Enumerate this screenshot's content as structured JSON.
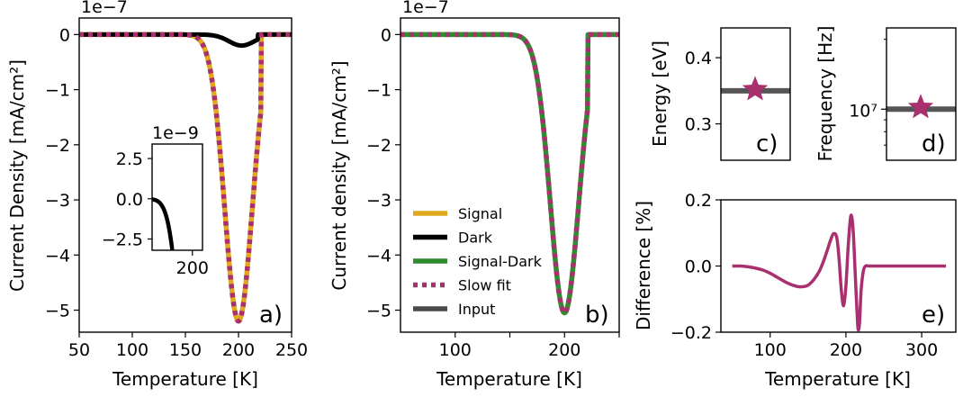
{
  "chart_data": [
    {
      "id": "a",
      "type": "line",
      "panel_label": "a)",
      "xlabel": "Temperature [K]",
      "ylabel": "Current Density [mA/cm²]",
      "offset_label": "1e−7",
      "xlim": [
        50,
        250
      ],
      "ylim": [
        -5.4,
        0.3
      ],
      "x_ticks": [
        50,
        100,
        150,
        200,
        250
      ],
      "x_tick_labels": [
        "50",
        "100",
        "150",
        "200",
        "250"
      ],
      "y_ticks": [
        0,
        -1,
        -2,
        -3,
        -4,
        -5
      ],
      "y_tick_labels": [
        "0",
        "−1",
        "−2",
        "−3",
        "−4",
        "−5"
      ],
      "series": [
        {
          "name": "Signal",
          "color": "#E0A81E",
          "style": "solid",
          "shape": "gaussian",
          "center": 200,
          "width": 13,
          "amplitude": -5.2,
          "cutoff": 221
        },
        {
          "name": "Dark",
          "color": "#000000",
          "style": "solid",
          "shape": "gaussian",
          "center": 203,
          "width": 12,
          "amplitude": -0.2,
          "cutoff": 218
        },
        {
          "name": "Slow fit",
          "color": "#A8306E",
          "style": "dotted",
          "shape": "gaussian",
          "center": 200,
          "width": 13,
          "amplitude": -5.2,
          "cutoff": 221
        }
      ],
      "inset": {
        "offset_label": "1e−9",
        "xlim": [
          160,
          210
        ],
        "ylim": [
          -3.2,
          3.4
        ],
        "y_ticks": [
          2.5,
          0.0,
          -2.5
        ],
        "y_tick_labels": [
          "2.5",
          "0.0",
          "−2.5"
        ],
        "x_ticks": [
          200
        ],
        "x_tick_labels": [
          "200"
        ]
      }
    },
    {
      "id": "b",
      "type": "line",
      "panel_label": "b)",
      "xlabel": "Temperature [K]",
      "ylabel": "Current density [mA/cm²]",
      "offset_label": "1e−7",
      "xlim": [
        50,
        250
      ],
      "ylim": [
        -5.4,
        0.3
      ],
      "x_ticks": [
        100,
        150,
        200,
        250
      ],
      "x_tick_labels": [
        "100",
        "",
        "200",
        ""
      ],
      "y_ticks": [
        0,
        -1,
        -2,
        -3,
        -4,
        -5
      ],
      "y_tick_labels": [
        "0",
        "−1",
        "−2",
        "−3",
        "−4",
        "−5"
      ],
      "series": [
        {
          "name": "Signal-Dark",
          "color": "#2E8B2E",
          "style": "solid",
          "shape": "gaussian",
          "center": 200,
          "width": 13,
          "amplitude": -5.05,
          "cutoff": 221
        },
        {
          "name": "Slow fit",
          "color": "#A8306E",
          "style": "dotted",
          "shape": "gaussian",
          "center": 200,
          "width": 13,
          "amplitude": -5.05,
          "cutoff": 221
        }
      ],
      "legend": {
        "position": "lower-left",
        "entries": [
          {
            "label": "Signal",
            "color": "#E0A81E",
            "style": "solid"
          },
          {
            "label": "Dark",
            "color": "#000000",
            "style": "solid"
          },
          {
            "label": "Signal-Dark",
            "color": "#2E8B2E",
            "style": "solid"
          },
          {
            "label": "Slow fit",
            "color": "#A8306E",
            "style": "dotted"
          },
          {
            "label": "Input",
            "color": "#4a4a4a",
            "style": "solid"
          }
        ]
      }
    },
    {
      "id": "c",
      "type": "scatter",
      "panel_label": "c)",
      "ylabel": "Energy [eV]",
      "ylim": [
        0.245,
        0.445
      ],
      "y_ticks": [
        0.3,
        0.4
      ],
      "y_tick_labels": [
        "0.3",
        "0.4"
      ],
      "input_value": 0.35,
      "fit_value": 0.352,
      "input_color": "#555555",
      "fit_color": "#A8306E"
    },
    {
      "id": "d",
      "type": "scatter",
      "panel_label": "d)",
      "ylabel": "Frequency [Hz]",
      "yscale": "log",
      "ylim_log10": [
        6.78,
        7.35
      ],
      "y_major_log10": [
        7
      ],
      "y_tick_labels": [
        "10⁷"
      ],
      "input_log10": 7.0,
      "fit_log10": 7.008,
      "input_color": "#555555",
      "fit_color": "#A8306E"
    },
    {
      "id": "e",
      "type": "line",
      "panel_label": "e)",
      "xlabel": "Temperature [K]",
      "ylabel": "Difference [%]",
      "xlim": [
        35,
        345
      ],
      "ylim": [
        -0.2,
        0.2
      ],
      "x_ticks": [
        100,
        200,
        300
      ],
      "x_tick_labels": [
        "100",
        "200",
        "300"
      ],
      "y_ticks": [
        0.2,
        0.0,
        -0.2
      ],
      "y_tick_labels": [
        "0.2",
        "0.0",
        "−0.2"
      ],
      "series": [
        {
          "name": "Difference",
          "color": "#A8306E",
          "x": [
            50,
            60,
            70,
            80,
            90,
            100,
            110,
            120,
            130,
            140,
            150,
            158,
            165,
            170,
            175,
            180,
            184,
            188,
            191,
            194,
            197,
            200,
            203,
            206,
            208,
            210,
            212,
            214,
            216,
            218,
            220,
            223,
            226,
            230,
            240,
            260,
            280,
            300,
            320,
            332
          ],
          "values": [
            0.0,
            0.0,
            -0.002,
            -0.006,
            -0.012,
            -0.022,
            -0.035,
            -0.048,
            -0.058,
            -0.063,
            -0.058,
            -0.04,
            -0.015,
            0.012,
            0.045,
            0.08,
            0.098,
            0.085,
            0.02,
            -0.075,
            -0.12,
            -0.06,
            0.06,
            0.145,
            0.145,
            0.09,
            -0.01,
            -0.11,
            -0.19,
            -0.17,
            -0.075,
            -0.015,
            0.0,
            0.0,
            0.0,
            0.0,
            0.0,
            0.0,
            0.0,
            0.0
          ]
        }
      ]
    }
  ]
}
